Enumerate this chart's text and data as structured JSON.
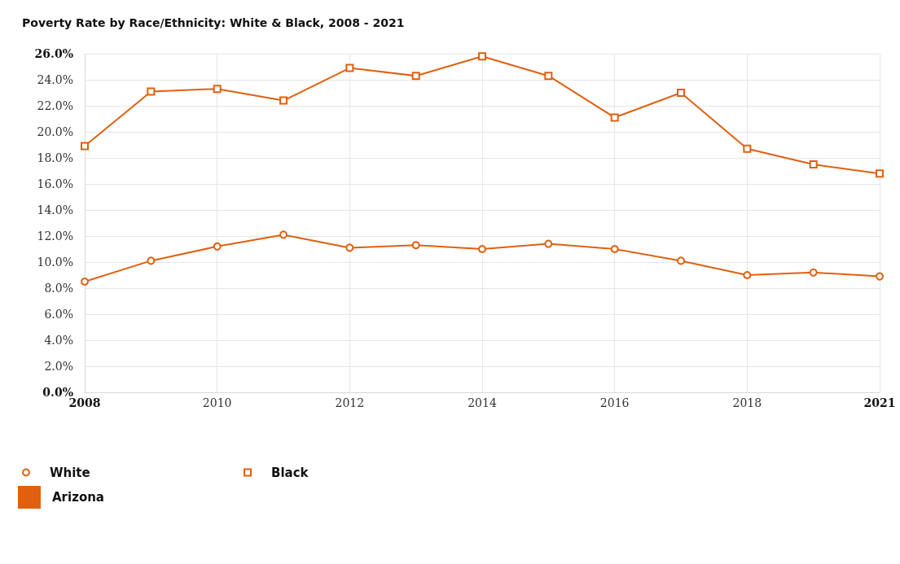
{
  "chart_data": {
    "type": "line",
    "title": "Poverty Rate by Race/Ethnicity: White & Black, 2008 - 2021",
    "categories": [
      "2008",
      null,
      "2010",
      null,
      "2012",
      null,
      "2014",
      null,
      "2016",
      null,
      "2018",
      null,
      "2021"
    ],
    "series": [
      {
        "name": "White",
        "color": "#e0600f",
        "marker": "circle",
        "values": [
          8.5,
          10.1,
          11.2,
          12.1,
          11.1,
          11.3,
          11.0,
          11.4,
          11.0,
          10.1,
          9.0,
          9.2,
          8.9
        ]
      },
      {
        "name": "Black",
        "color": "#e0600f",
        "marker": "square",
        "values": [
          18.9,
          23.1,
          23.3,
          22.4,
          24.9,
          24.3,
          25.8,
          24.3,
          21.1,
          23.0,
          18.7,
          17.5,
          16.8
        ]
      }
    ],
    "ylim": [
      0,
      26
    ],
    "yticks": [
      {
        "value": 0,
        "label": "0.0%"
      },
      {
        "value": 2,
        "label": "2.0%"
      },
      {
        "value": 4,
        "label": "4.0%"
      },
      {
        "value": 6,
        "label": "6.0%"
      },
      {
        "value": 8,
        "label": "8.0%"
      },
      {
        "value": 10,
        "label": "10.0%"
      },
      {
        "value": 12,
        "label": "12.0%"
      },
      {
        "value": 14,
        "label": "14.0%"
      },
      {
        "value": 16,
        "label": "16.0%"
      },
      {
        "value": 18,
        "label": "18.0%"
      },
      {
        "value": 20,
        "label": "20.0%"
      },
      {
        "value": 22,
        "label": "22.0%"
      },
      {
        "value": 24,
        "label": "24.0%"
      },
      {
        "value": 26,
        "label": "26.0%"
      }
    ],
    "grid": true,
    "legend": "bottom left",
    "line_style": "solid",
    "annotations": [
      "Arizona"
    ]
  }
}
